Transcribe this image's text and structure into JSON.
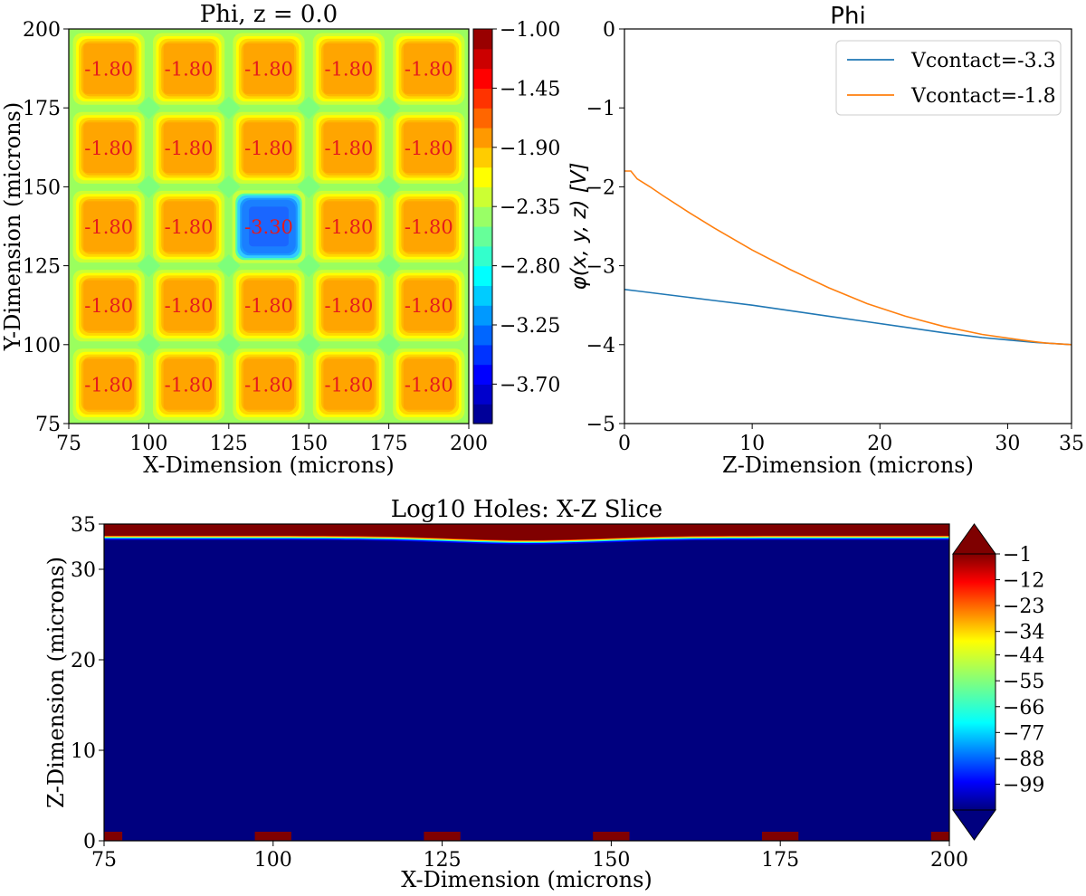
{
  "chart_data": [
    {
      "type": "heatmap",
      "title": "Phi, z = 0.0",
      "xlabel": "X-Dimension (microns)",
      "ylabel": "Y-Dimension (microns)",
      "xlim": [
        75,
        200
      ],
      "ylim": [
        75,
        200
      ],
      "xticks": [
        75,
        100,
        125,
        150,
        175,
        200
      ],
      "yticks": [
        75,
        100,
        125,
        150,
        175,
        200
      ],
      "pixel_centers": [
        87.5,
        112.5,
        137.5,
        162.5,
        187.5
      ],
      "pixel_labels": [
        [
          "-1.80",
          "-1.80",
          "-1.80",
          "-1.80",
          "-1.80"
        ],
        [
          "-1.80",
          "-1.80",
          "-1.80",
          "-1.80",
          "-1.80"
        ],
        [
          "-1.80",
          "-1.80",
          "-3.30",
          "-1.80",
          "-1.80"
        ],
        [
          "-1.80",
          "-1.80",
          "-1.80",
          "-1.80",
          "-1.80"
        ],
        [
          "-1.80",
          "-1.80",
          "-1.80",
          "-1.80",
          "-1.80"
        ]
      ],
      "colorbar": {
        "range": [
          -4.0,
          -1.0
        ],
        "ticks": [
          "−1.00",
          "−1.45",
          "−1.90",
          "−2.35",
          "−2.80",
          "−3.25",
          "−3.70"
        ],
        "tick_values": [
          -1.0,
          -1.45,
          -1.9,
          -2.35,
          -2.8,
          -3.25,
          -3.7
        ],
        "levels": 20
      },
      "colors": {
        "label_text": "#e41a1c",
        "background_level": "#9aff5e",
        "pixel_level": "#ffa500"
      }
    },
    {
      "type": "line",
      "title": "Phi",
      "xlabel": "Z-Dimension (microns)",
      "ylabel": "φ(x, y, z) [V]",
      "xlim": [
        0,
        35
      ],
      "ylim": [
        -5,
        0
      ],
      "xticks": [
        "0",
        "10",
        "20",
        "30",
        "35"
      ],
      "xtick_values": [
        0,
        10,
        20,
        30,
        35
      ],
      "yticks": [
        "0",
        "−1",
        "−2",
        "−3",
        "−4",
        "−5"
      ],
      "ytick_values": [
        0,
        -1,
        -2,
        -3,
        -4,
        -5
      ],
      "legend": "top-right",
      "series": [
        {
          "name": "Vcontact=-3.3",
          "color": "#1f77b4",
          "x": [
            0,
            1,
            3,
            5,
            7,
            10,
            13,
            16,
            19,
            22,
            25,
            28,
            30,
            32,
            34,
            35
          ],
          "y": [
            -3.3,
            -3.32,
            -3.36,
            -3.4,
            -3.44,
            -3.5,
            -3.57,
            -3.64,
            -3.71,
            -3.78,
            -3.85,
            -3.91,
            -3.94,
            -3.97,
            -3.99,
            -4.0
          ]
        },
        {
          "name": "Vcontact=-1.8",
          "color": "#ff7f0e",
          "x": [
            0,
            0.5,
            1,
            2,
            3,
            5,
            7,
            10,
            13,
            16,
            19,
            22,
            25,
            28,
            31,
            33,
            35
          ],
          "y": [
            -1.8,
            -1.8,
            -1.9,
            -2.0,
            -2.11,
            -2.32,
            -2.52,
            -2.8,
            -3.05,
            -3.28,
            -3.48,
            -3.64,
            -3.77,
            -3.87,
            -3.94,
            -3.98,
            -4.0
          ]
        }
      ]
    },
    {
      "type": "heatmap",
      "title": "Log10 Holes: X-Z Slice",
      "xlabel": "X-Dimension (microns)",
      "ylabel": "Z-Dimension (microns)",
      "xlim": [
        75,
        200
      ],
      "ylim": [
        0,
        35
      ],
      "xticks": [
        75,
        100,
        125,
        150,
        175,
        200
      ],
      "yticks": [
        0,
        10,
        20,
        30,
        35
      ],
      "contact_centers_x": [
        75,
        100,
        125,
        150,
        175,
        200
      ],
      "contact_halfwidth": 2.7,
      "contact_height": 1.0,
      "top_surface_z": 33.7,
      "dip_center_x": 137.5,
      "dip_depth": 0.5,
      "colorbar": {
        "range": [
          -110,
          -1
        ],
        "ticks": [
          "−1",
          "−12",
          "−23",
          "−34",
          "−44",
          "−55",
          "−66",
          "−77",
          "−88",
          "−99"
        ],
        "tick_values": [
          -1,
          -12,
          -23,
          -34,
          -44,
          -55,
          -66,
          -77,
          -88,
          -99
        ],
        "extend": "both"
      },
      "colors": {
        "bulk": "#00007f",
        "surface": "#800000"
      }
    }
  ]
}
